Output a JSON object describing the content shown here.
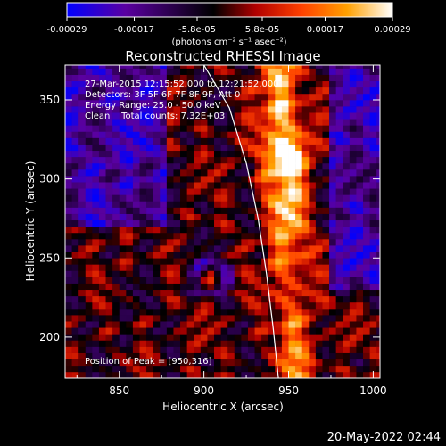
{
  "colorbar": {
    "ticks": [
      "-0.00029",
      "-0.00017",
      "-5.8e-05",
      "5.8e-05",
      "0.00017",
      "0.00029"
    ],
    "tick_values": [
      -0.00029,
      -0.00017,
      -5.8e-05,
      5.8e-05,
      0.00017,
      0.00029
    ],
    "range": [
      -0.00029,
      0.00029
    ],
    "units_label": "(photons cm⁻² s⁻¹ asec⁻²)",
    "colors": [
      "#0000ff",
      "#5a00a0",
      "#000000",
      "#b00000",
      "#ff4000",
      "#ffa000",
      "#ffffff"
    ]
  },
  "chart_data": {
    "type": "heatmap",
    "title": "Reconstructed RHESSI Image",
    "xlabel": "Heliocentric X (arcsec)",
    "ylabel": "Heliocentric Y (arcsec)",
    "xlim": [
      818,
      1004
    ],
    "ylim": [
      174,
      372
    ],
    "x_ticks": [
      850,
      900,
      950,
      1000
    ],
    "y_ticks": [
      200,
      250,
      300,
      350
    ],
    "annotations": [
      "27-Mar-2015 12:15:52.000 to 12:21:52.000",
      "Detectors: 3F 5F 6F 7F 8F 9F, Att 0",
      "Energy Range: 25.0 - 50.0 keV",
      "Clean    Total counts: 7.32E+03"
    ],
    "peak_label": "Position of Peak = [950,316]",
    "peak": [
      950,
      316
    ],
    "limb_points": [
      [
        900,
        372
      ],
      [
        915,
        345
      ],
      [
        925,
        310
      ],
      [
        932,
        275
      ],
      [
        937,
        240
      ],
      [
        941,
        205
      ],
      [
        944,
        174
      ]
    ],
    "grid": false
  },
  "footer": {
    "timestamp": "20-May-2022 02:44"
  }
}
